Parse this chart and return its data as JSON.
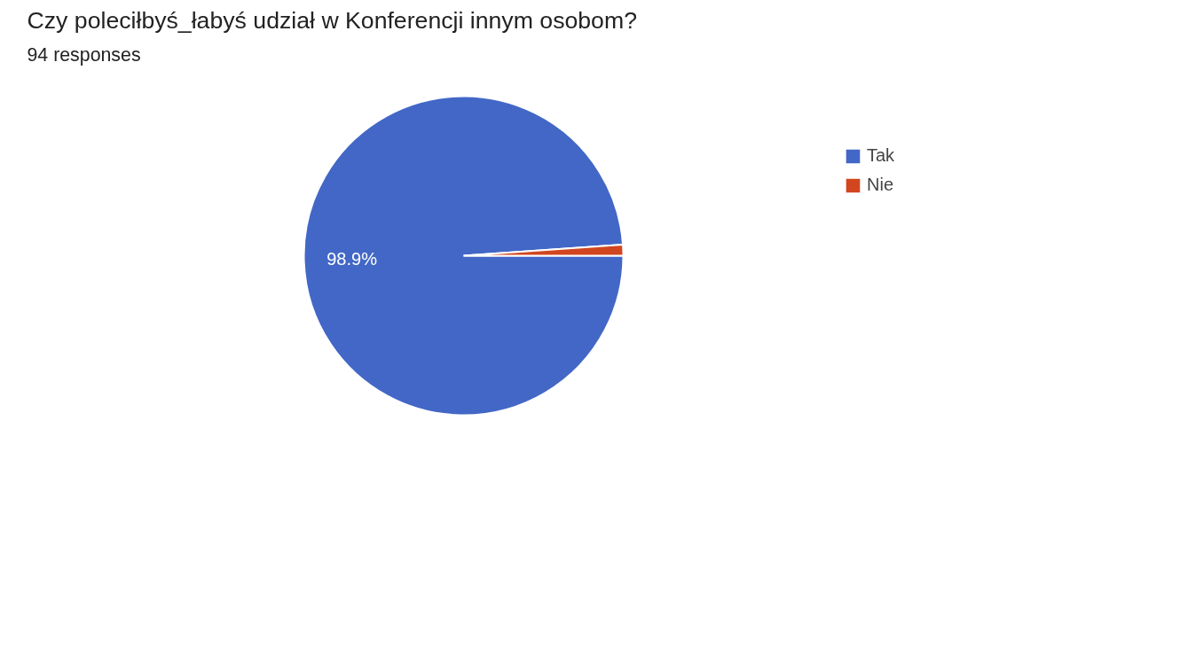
{
  "chart_data": {
    "type": "pie",
    "title": "Czy poleciłbyś_łabyś udział w Konferencji innym osobom?",
    "subtitle": "94 responses",
    "categories": [
      "Tak",
      "Nie"
    ],
    "values": [
      98.9,
      1.1
    ],
    "colors": [
      "#4267c6",
      "#d1461f"
    ],
    "value_labels": [
      "98.9%",
      null
    ],
    "legend": "top right"
  }
}
